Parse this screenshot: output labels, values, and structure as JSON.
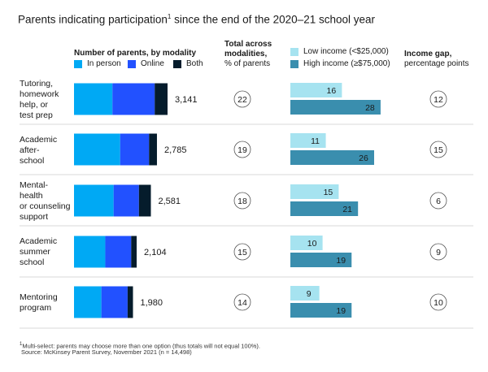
{
  "title": "Parents indicating participation",
  "title_sup": "1",
  "title_rest": " since the end of the 2020–21 school year",
  "headers": {
    "parents_title": "Number of parents, by modality",
    "total_title_1": "Total across",
    "total_title_2": "modalities,",
    "total_sub": "% of parents",
    "gap_title": "Income gap,",
    "gap_sub": "percentage points"
  },
  "legend": {
    "in_person": "In person",
    "online": "Online",
    "both": "Both",
    "low": "Low income (<$25,000)",
    "high": "High income (≥$75,000)"
  },
  "colors": {
    "in_person": "#00a9f4",
    "online": "#2251ff",
    "both": "#051c2c",
    "low": "#a6e3f0",
    "high": "#3a8eae",
    "divider": "#cccccc"
  },
  "rows": [
    {
      "label_lines": [
        "Tutoring,",
        "homework",
        "help, or",
        "test prep"
      ]
    },
    {
      "label_lines": [
        "Academic",
        "after-",
        "school"
      ]
    },
    {
      "label_lines": [
        "Mental-",
        "health",
        "or counseling",
        "support"
      ]
    },
    {
      "label_lines": [
        "Academic",
        "summer",
        "school"
      ]
    },
    {
      "label_lines": [
        "Mentoring",
        "program"
      ]
    }
  ],
  "chart_data": {
    "type": "bar",
    "title": "Parents indicating participation since the end of the 2020–21 school year",
    "categories": [
      "Tutoring, homework help, or test prep",
      "Academic after-school",
      "Mental-health or counseling support",
      "Academic summer school",
      "Mentoring program"
    ],
    "parents_by_modality": {
      "unit": "Number of parents",
      "series": [
        {
          "name": "In person",
          "values": [
            1290,
            1550,
            1330,
            1050,
            920
          ]
        },
        {
          "name": "Online",
          "values": [
            1420,
            970,
            850,
            870,
            880
          ]
        },
        {
          "name": "Both",
          "values": [
            431,
            265,
            401,
            184,
            180
          ]
        }
      ],
      "totals": [
        "3,141",
        "2,785",
        "2,581",
        "2,104",
        "1,980"
      ]
    },
    "total_pct": {
      "unit": "% of parents",
      "values": [
        22,
        19,
        18,
        15,
        14
      ]
    },
    "income": {
      "unit": "% of parents",
      "series": [
        {
          "name": "Low income (<$25,000)",
          "values": [
            16,
            11,
            15,
            10,
            9
          ]
        },
        {
          "name": "High income (≥$75,000)",
          "values": [
            28,
            26,
            21,
            19,
            19
          ]
        }
      ]
    },
    "income_gap": {
      "unit": "percentage points",
      "values": [
        12,
        15,
        6,
        9,
        10
      ]
    }
  },
  "footnote_sup": "1",
  "footnote": "Multi-select: parents may choose more than one option (thus totals will not equal 100%).",
  "source": "Source: McKinsey Parent Survey, November 2021 (n = 14,498)"
}
